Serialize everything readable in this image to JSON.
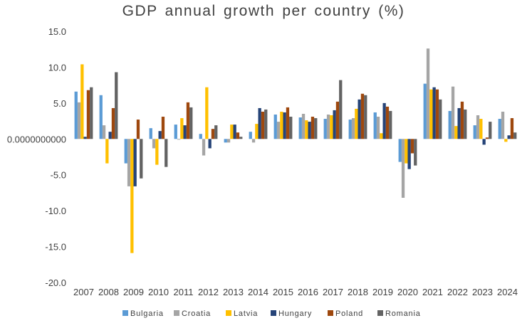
{
  "chart_data": {
    "type": "bar",
    "title": "GDP annual growth per country (%)",
    "xlabel": "",
    "ylabel": "",
    "ylim": [
      -20,
      15
    ],
    "y_ticks": [
      "15.0",
      "10.0",
      "5.0",
      "0.0000000000",
      "-5.0",
      "-10.0",
      "-15.0",
      "-20.0"
    ],
    "y_tick_values": [
      15,
      10,
      5,
      0,
      -5,
      -10,
      -15,
      -20
    ],
    "grid": false,
    "legend_position": "bottom",
    "categories": [
      "2007",
      "2008",
      "2009",
      "2010",
      "2011",
      "2012",
      "2013",
      "2014",
      "2015",
      "2016",
      "2017",
      "2018",
      "2019",
      "2020",
      "2021",
      "2022",
      "2023",
      "2024"
    ],
    "series": [
      {
        "name": "Bulgaria",
        "color": "#5b9bd5",
        "values": [
          6.6,
          6.1,
          -3.4,
          1.5,
          2.0,
          0.7,
          -0.5,
          1.0,
          3.4,
          3.0,
          2.8,
          2.7,
          3.7,
          -3.2,
          7.7,
          3.9,
          1.9,
          2.8
        ]
      },
      {
        "name": "Croatia",
        "color": "#a5a5a5",
        "values": [
          5.1,
          1.9,
          -6.6,
          -1.3,
          -0.1,
          -2.3,
          -0.5,
          -0.5,
          2.4,
          3.5,
          3.4,
          2.9,
          3.1,
          -8.2,
          12.6,
          7.3,
          3.3,
          3.8
        ]
      },
      {
        "name": "Latvia",
        "color": "#ffc000",
        "values": [
          10.4,
          -3.4,
          -15.9,
          -3.6,
          2.9,
          7.2,
          2.0,
          2.1,
          3.8,
          2.6,
          3.3,
          4.2,
          0.8,
          -3.4,
          6.9,
          1.8,
          2.8,
          -0.4
        ]
      },
      {
        "name": "Hungary",
        "color": "#264478",
        "values": [
          0.3,
          1.0,
          -6.6,
          1.1,
          1.9,
          -1.3,
          2.0,
          4.3,
          3.7,
          2.4,
          4.0,
          5.5,
          5.0,
          -4.2,
          7.2,
          4.3,
          -0.8,
          0.5
        ]
      },
      {
        "name": "Poland",
        "color": "#9e480e",
        "values": [
          6.8,
          4.3,
          2.7,
          3.1,
          5.1,
          1.4,
          0.9,
          3.8,
          4.4,
          3.1,
          5.2,
          6.3,
          4.5,
          -2.0,
          6.9,
          5.2,
          0.2,
          2.9
        ]
      },
      {
        "name": "Romania",
        "color": "#636363",
        "values": [
          7.2,
          9.3,
          -5.5,
          -3.9,
          4.4,
          1.9,
          0.3,
          4.1,
          3.1,
          2.9,
          8.2,
          6.1,
          3.9,
          -3.7,
          5.5,
          4.1,
          2.4,
          0.9
        ]
      }
    ]
  }
}
